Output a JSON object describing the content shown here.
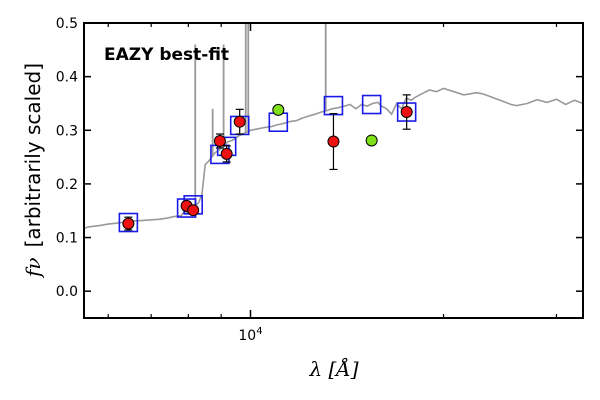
{
  "chart_data": {
    "type": "scatter",
    "title": "",
    "annotation": {
      "text": "EAZY best-fit",
      "color": "#ff0000"
    },
    "xlabel": "λ [Å]",
    "ylabel_symbol": "fν",
    "ylabel_text": "[arbitrarily scaled]",
    "x_scale": "log",
    "xlim": [
      5500,
      33000
    ],
    "ylim": [
      -0.05,
      0.5
    ],
    "y_ticks": [
      {
        "value": 0.0,
        "label": "0.0"
      },
      {
        "value": 0.1,
        "label": "0.1"
      },
      {
        "value": 0.2,
        "label": "0.2"
      },
      {
        "value": 0.3,
        "label": "0.3"
      },
      {
        "value": 0.4,
        "label": "0.4"
      },
      {
        "value": 0.5,
        "label": "0.5"
      }
    ],
    "x_major_ticks": [
      {
        "value": 10000,
        "base": "10",
        "exp": "4"
      }
    ],
    "x_minor_ticks": [
      6000,
      7000,
      8000,
      9000,
      20000,
      30000
    ],
    "grid": false,
    "colors": {
      "model": "#999999",
      "observed_fill": "#ee1111",
      "extra_fill": "#7fe01a",
      "model_flux_box": "#1a1ae6",
      "errorbar": "#000000"
    },
    "series": [
      {
        "kind": "model-spectrum",
        "x": [
          5500,
          5600,
          5800,
          6000,
          6200,
          6400,
          6600,
          6800,
          7000,
          7200,
          7400,
          7600,
          7800,
          7900,
          7950,
          8000,
          8050,
          8100,
          8150,
          8200,
          8250,
          8300,
          8400,
          8500,
          8600,
          8700,
          8800,
          8900,
          9000,
          9100,
          9200,
          9400,
          9600,
          9800,
          10000,
          10200,
          10500,
          10800,
          11000,
          11200,
          11500,
          11800,
          12000,
          12300,
          12600,
          12900,
          13100,
          13400,
          13700,
          14000,
          14300,
          14600,
          14900,
          15200,
          15500,
          15800,
          16000,
          16300,
          16600,
          16900,
          17200,
          17500,
          17800,
          18100,
          18500,
          19000,
          19500,
          20000,
          20500,
          21000,
          21500,
          22000,
          22500,
          23000,
          23500,
          24000,
          24500,
          25000,
          25500,
          26000,
          27000,
          28000,
          29000,
          30000,
          31000,
          32000,
          33000
        ],
        "y": [
          0.117,
          0.12,
          0.122,
          0.125,
          0.127,
          0.129,
          0.131,
          0.132,
          0.133,
          0.134,
          0.136,
          0.139,
          0.141,
          0.15,
          0.145,
          0.15,
          0.154,
          0.156,
          0.158,
          0.16,
          0.162,
          0.165,
          0.18,
          0.236,
          0.242,
          0.25,
          0.258,
          0.262,
          0.266,
          0.27,
          0.278,
          0.282,
          0.29,
          0.295,
          0.3,
          0.302,
          0.305,
          0.307,
          0.31,
          0.312,
          0.316,
          0.318,
          0.322,
          0.326,
          0.33,
          0.334,
          0.336,
          0.34,
          0.342,
          0.345,
          0.348,
          0.34,
          0.348,
          0.345,
          0.35,
          0.352,
          0.345,
          0.34,
          0.33,
          0.35,
          0.34,
          0.36,
          0.356,
          0.362,
          0.368,
          0.375,
          0.372,
          0.378,
          0.374,
          0.37,
          0.366,
          0.368,
          0.37,
          0.368,
          0.364,
          0.36,
          0.356,
          0.352,
          0.348,
          0.346,
          0.35,
          0.357,
          0.352,
          0.358,
          0.348,
          0.356,
          0.35
        ]
      },
      {
        "kind": "emission-lines",
        "lines": [
          {
            "x": 8200,
            "y": 0.46
          },
          {
            "x": 8730,
            "y": 0.34
          },
          {
            "x": 9080,
            "y": 0.46
          },
          {
            "x": 9830,
            "y": 0.5
          },
          {
            "x": 9920,
            "y": 0.5
          },
          {
            "x": 13100,
            "y": 0.5
          }
        ]
      },
      {
        "kind": "observed-flux",
        "points": [
          {
            "x": 6450,
            "y": 0.126,
            "err": 0.012
          },
          {
            "x": 7950,
            "y": 0.159,
            "err": 0.008
          },
          {
            "x": 8140,
            "y": 0.151,
            "err": 0.006
          },
          {
            "x": 8960,
            "y": 0.28,
            "err": 0.013
          },
          {
            "x": 9180,
            "y": 0.256,
            "err": 0.015
          },
          {
            "x": 9620,
            "y": 0.316,
            "err": 0.023
          },
          {
            "x": 13470,
            "y": 0.279,
            "err": 0.052
          },
          {
            "x": 17520,
            "y": 0.334,
            "err": 0.032
          }
        ]
      },
      {
        "kind": "extra-points",
        "points": [
          {
            "x": 11050,
            "y": 0.338
          },
          {
            "x": 15450,
            "y": 0.281
          }
        ]
      },
      {
        "kind": "model-flux-boxes",
        "points": [
          {
            "x": 6450,
            "y": 0.128
          },
          {
            "x": 7950,
            "y": 0.155
          },
          {
            "x": 8140,
            "y": 0.161
          },
          {
            "x": 8960,
            "y": 0.255
          },
          {
            "x": 9180,
            "y": 0.27
          },
          {
            "x": 9620,
            "y": 0.309
          },
          {
            "x": 11050,
            "y": 0.315
          },
          {
            "x": 13470,
            "y": 0.346
          },
          {
            "x": 15450,
            "y": 0.348
          },
          {
            "x": 17520,
            "y": 0.334
          }
        ]
      }
    ]
  }
}
